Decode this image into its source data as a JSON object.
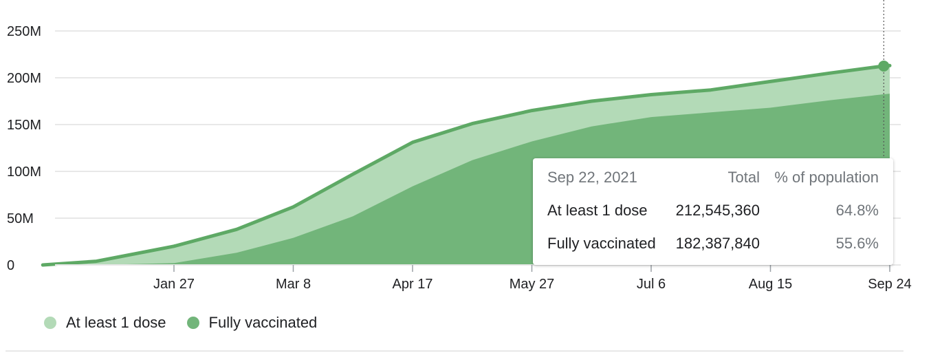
{
  "chart_data": {
    "type": "area",
    "x_ticks": [
      "Jan 27",
      "Mar 8",
      "Apr 17",
      "May 27",
      "Jul 6",
      "Aug 15",
      "Sep 24"
    ],
    "y_ticks": [
      "0",
      "50M",
      "100M",
      "150M",
      "200M",
      "250M"
    ],
    "ylim": [
      0,
      250000000
    ],
    "xlim": [
      "2020-12-14",
      "2021-09-24"
    ],
    "grid": true,
    "legend_position": "bottom-left",
    "x": [
      "2020-12-14",
      "2021-01-01",
      "2021-01-27",
      "2021-02-17",
      "2021-03-08",
      "2021-03-28",
      "2021-04-17",
      "2021-05-07",
      "2021-05-27",
      "2021-06-16",
      "2021-07-06",
      "2021-07-26",
      "2021-08-15",
      "2021-09-04",
      "2021-09-22",
      "2021-09-24"
    ],
    "series": [
      {
        "name": "At least 1 dose",
        "color": "#b3dab7",
        "line_color": "#5ea965",
        "values": [
          0,
          4000000,
          20000000,
          38000000,
          62000000,
          97000000,
          131000000,
          151000000,
          165000000,
          175000000,
          182000000,
          187000000,
          196000000,
          205000000,
          212545360,
          213000000
        ]
      },
      {
        "name": "Fully vaccinated",
        "color": "#72b57a",
        "values": [
          0,
          0,
          2000000,
          13000000,
          29000000,
          52000000,
          84000000,
          112000000,
          132000000,
          148000000,
          158000000,
          163000000,
          168000000,
          176000000,
          182387840,
          183000000
        ]
      }
    ]
  },
  "tooltip": {
    "date": "Sep 22, 2021",
    "col_total": "Total",
    "col_pct": "% of population",
    "rows": [
      {
        "label": "At least 1 dose",
        "total": "212,545,360",
        "pct": "64.8%"
      },
      {
        "label": "Fully vaccinated",
        "total": "182,387,840",
        "pct": "55.6%"
      }
    ]
  },
  "legend": [
    {
      "label": "At least 1 dose",
      "color": "#b3dab7"
    },
    {
      "label": "Fully vaccinated",
      "color": "#72b57a"
    }
  ],
  "colors": {
    "grid": "#e8e8e8",
    "line": "#5ea965",
    "marker": "#5ea965",
    "hover_line": "#555555"
  }
}
